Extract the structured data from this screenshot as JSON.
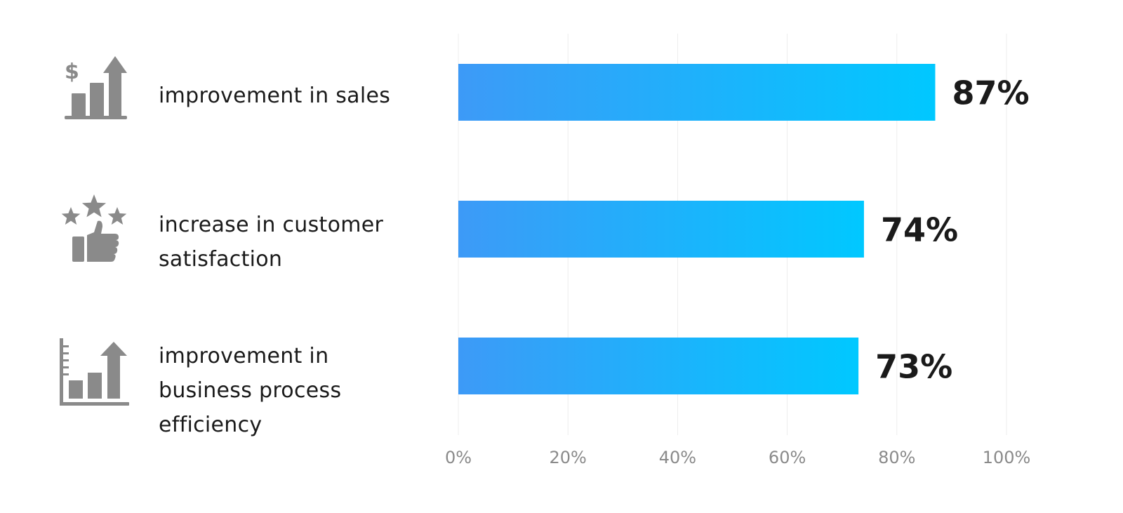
{
  "chart_data": {
    "type": "bar",
    "orientation": "horizontal",
    "categories": [
      "improvement in sales",
      "increase in customer satisfaction",
      "improvement in business process efficiency"
    ],
    "values": [
      87,
      74,
      73
    ],
    "value_labels": [
      "87%",
      "74%",
      "73%"
    ],
    "xlim": [
      0,
      100
    ],
    "x_ticks": [
      "0%",
      "20%",
      "40%",
      "60%",
      "80%",
      "100%"
    ],
    "grid": true,
    "bar_gradient": [
      "#3d9af7",
      "#00c8ff"
    ],
    "icons": [
      "sales-growth-icon",
      "customer-satisfaction-icon",
      "efficiency-growth-icon"
    ]
  },
  "rows": [
    {
      "label_lines": [
        "improvement in sales"
      ]
    },
    {
      "label_lines": [
        "increase in customer",
        "satisfaction"
      ]
    },
    {
      "label_lines": [
        "improvement in",
        "business process",
        "efficiency"
      ]
    }
  ]
}
